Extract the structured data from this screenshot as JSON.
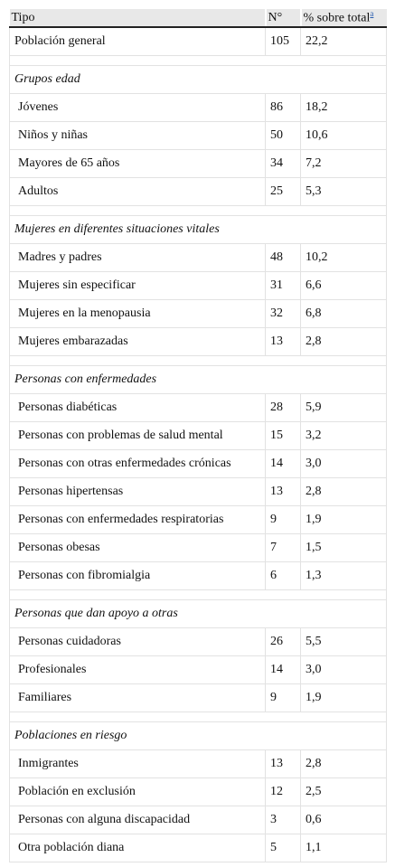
{
  "table": {
    "header": {
      "tipo": "Tipo",
      "n": "N°",
      "pct": "% sobre total",
      "note": "a"
    },
    "general": [
      "Población general",
      "105",
      "22,2"
    ],
    "sections": [
      {
        "title": "Grupos edad",
        "rows": [
          [
            "Jóvenes",
            "86",
            "18,2"
          ],
          [
            "Niños y niñas",
            "50",
            "10,6"
          ],
          [
            "Mayores de 65 años",
            "34",
            "7,2"
          ],
          [
            "Adultos",
            "25",
            "5,3"
          ]
        ]
      },
      {
        "title": "Mujeres en diferentes situaciones vitales",
        "rows": [
          [
            "Madres y padres",
            "48",
            "10,2"
          ],
          [
            "Mujeres sin especificar",
            "31",
            "6,6"
          ],
          [
            "Mujeres en la menopausia",
            "32",
            "6,8"
          ],
          [
            "Mujeres embarazadas",
            "13",
            "2,8"
          ]
        ]
      },
      {
        "title": "Personas con enfermedades",
        "rows": [
          [
            "Personas diabéticas",
            "28",
            "5,9"
          ],
          [
            "Personas con problemas de salud mental",
            "15",
            "3,2"
          ],
          [
            "Personas con otras enfermedades crónicas",
            "14",
            "3,0"
          ],
          [
            "Personas hipertensas",
            "13",
            "2,8"
          ],
          [
            "Personas con enfermedades respiratorias",
            "9",
            "1,9"
          ],
          [
            "Personas obesas",
            "7",
            "1,5"
          ],
          [
            "Personas con fibromialgia",
            "6",
            "1,3"
          ]
        ]
      },
      {
        "title": "Personas que dan apoyo a otras",
        "rows": [
          [
            "Personas cuidadoras",
            "26",
            "5,5"
          ],
          [
            "Profesionales",
            "14",
            "3,0"
          ],
          [
            "Familiares",
            "9",
            "1,9"
          ]
        ]
      },
      {
        "title": "Poblaciones en riesgo",
        "rows": [
          [
            "Inmigrantes",
            "13",
            "2,8"
          ],
          [
            "Población en exclusión",
            "12",
            "2,5"
          ],
          [
            "Personas con alguna discapacidad",
            "3",
            "0,6"
          ],
          [
            "Otra población diana",
            "5",
            "1,1"
          ]
        ]
      }
    ]
  }
}
